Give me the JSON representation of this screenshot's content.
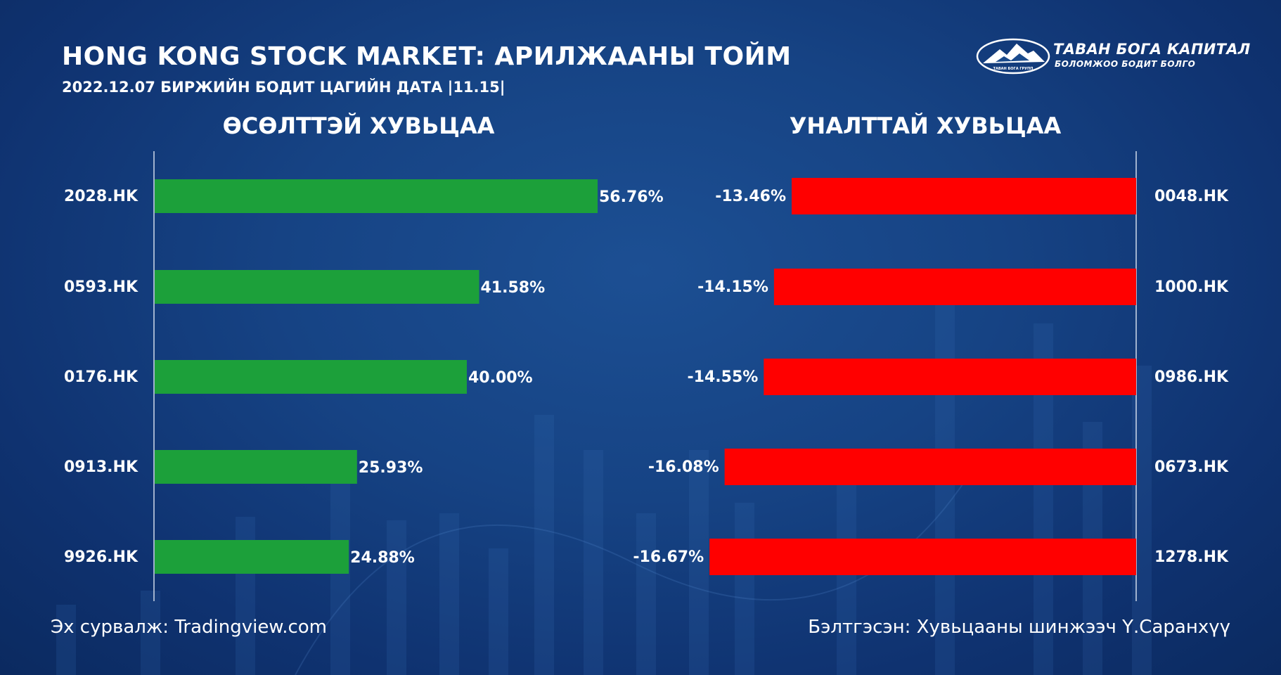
{
  "header": {
    "title": "HONG KONG STOCK MARKET: АРИЛЖААНЫ ТОЙМ",
    "subtitle": "2022.12.07 БИРЖИЙН БОДИТ ЦАГИЙН ДАТА |11.15|"
  },
  "logo": {
    "name": "ТАВАН БОГА КАПИТАЛ",
    "slogan": "БОЛОМЖОО БОДИТ БОЛГО",
    "emblem_text": "ТАВАН БОГА ГРУПП"
  },
  "footer": {
    "source": "Эх сурвалж: Tradingview.com",
    "author": "Бэлтгэсэн: Хувьцааны шинжээч Ү.Саранхүү"
  },
  "colors": {
    "gainers": "#1ca03a",
    "losers": "#ff0000",
    "text": "#ffffff"
  },
  "chart_data": [
    {
      "type": "bar",
      "orientation": "horizontal",
      "title": "ӨСӨЛТТЭЙ ХУВЬЦАА",
      "categories": [
        "2028.HK",
        "0593.HK",
        "0176.HK",
        "0913.HK",
        "9926.HK"
      ],
      "values": [
        56.76,
        41.58,
        40.0,
        25.93,
        24.88
      ],
      "value_labels": [
        "56.76%",
        "41.58%",
        "40.00%",
        "25.93%",
        "24.88%"
      ],
      "unit": "%",
      "xlim": [
        0,
        70
      ],
      "grid": false
    },
    {
      "type": "bar",
      "orientation": "horizontal",
      "title": "УНАЛТТАЙ ХУВЬЦАА",
      "categories": [
        "0048.HK",
        "1000.HK",
        "0986.HK",
        "0673.HK",
        "1278.HK"
      ],
      "values": [
        -13.46,
        -14.15,
        -14.55,
        -16.08,
        -16.67
      ],
      "value_labels": [
        "-13.46%",
        "-14.15%",
        "-14.55%",
        "-16.08%",
        "-16.67%"
      ],
      "unit": "%",
      "xlim": [
        -24,
        0
      ],
      "grid": false
    }
  ]
}
